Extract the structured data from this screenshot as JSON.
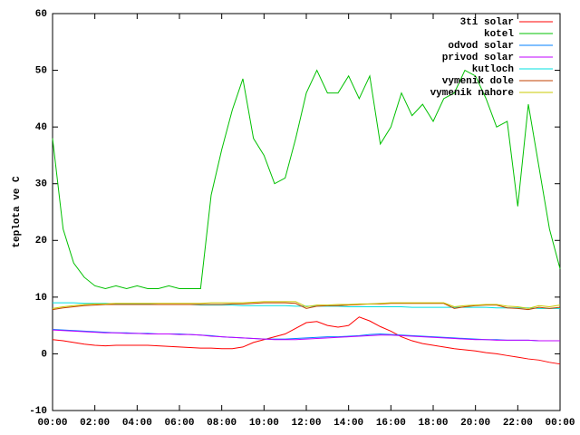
{
  "chart_data": {
    "type": "line",
    "y_label": "teplota ve C",
    "x": [
      0,
      0.5,
      1,
      1.5,
      2,
      2.5,
      3,
      3.5,
      4,
      4.5,
      5,
      5.5,
      6,
      6.5,
      7,
      7.5,
      8,
      8.5,
      9,
      9.5,
      10,
      10.5,
      11,
      11.5,
      12,
      12.5,
      13,
      13.5,
      14,
      14.5,
      15,
      15.5,
      16,
      16.5,
      17,
      17.5,
      18,
      18.5,
      19,
      19.5,
      20,
      20.5,
      21,
      21.5,
      22,
      22.5,
      23,
      23.5,
      24
    ],
    "xlim": [
      0,
      24
    ],
    "xticks": [
      {
        "value": 0,
        "label": "00:00"
      },
      {
        "value": 2,
        "label": "02:00"
      },
      {
        "value": 4,
        "label": "04:00"
      },
      {
        "value": 6,
        "label": "06:00"
      },
      {
        "value": 8,
        "label": "08:00"
      },
      {
        "value": 10,
        "label": "10:00"
      },
      {
        "value": 12,
        "label": "12:00"
      },
      {
        "value": 14,
        "label": "14:00"
      },
      {
        "value": 16,
        "label": "16:00"
      },
      {
        "value": 18,
        "label": "18:00"
      },
      {
        "value": 20,
        "label": "20:00"
      },
      {
        "value": 22,
        "label": "22:00"
      },
      {
        "value": 24,
        "label": "00:00"
      }
    ],
    "ylim": [
      -10,
      60
    ],
    "yticks": [
      -10,
      0,
      10,
      20,
      30,
      40,
      50,
      60
    ],
    "grid": false,
    "legend": "top-right",
    "series": [
      {
        "name": "3ti solar",
        "color": "#ff0000",
        "values": [
          2.5,
          2.3,
          2.0,
          1.7,
          1.5,
          1.4,
          1.5,
          1.5,
          1.5,
          1.5,
          1.4,
          1.3,
          1.2,
          1.1,
          1.0,
          1.0,
          0.9,
          0.9,
          1.2,
          2.0,
          2.5,
          3.0,
          3.5,
          4.5,
          5.5,
          5.7,
          5.0,
          4.7,
          5.0,
          6.5,
          5.8,
          4.8,
          4.0,
          3.0,
          2.3,
          1.8,
          1.5,
          1.2,
          0.9,
          0.7,
          0.5,
          0.2,
          0,
          -0.3,
          -0.6,
          -0.9,
          -1.1,
          -1.5,
          -1.8
        ]
      },
      {
        "name": "kotel",
        "color": "#00c000",
        "values": [
          38,
          22,
          16,
          13.5,
          12,
          11.5,
          12,
          11.5,
          12,
          11.5,
          11.5,
          12,
          11.5,
          11.5,
          11.5,
          28,
          36,
          43,
          48.5,
          38,
          35,
          30,
          31,
          38,
          46,
          50,
          46,
          46,
          49,
          45,
          49,
          37,
          40,
          46,
          42,
          44,
          41,
          45,
          46,
          50,
          49,
          45,
          40,
          41,
          26,
          44,
          33,
          22,
          15
        ]
      },
      {
        "name": "odvod solar",
        "color": "#0080ff",
        "values": [
          4.3,
          4.2,
          4.1,
          4.0,
          3.9,
          3.8,
          3.7,
          3.7,
          3.6,
          3.6,
          3.5,
          3.5,
          3.5,
          3.4,
          3.3,
          3.2,
          3.0,
          2.9,
          2.8,
          2.7,
          2.6,
          2.6,
          2.6,
          2.7,
          2.8,
          2.9,
          3.0,
          3.0,
          3.1,
          3.2,
          3.4,
          3.5,
          3.4,
          3.3,
          3.2,
          3.1,
          3.0,
          2.9,
          2.8,
          2.7,
          2.6,
          2.5,
          2.5,
          2.4,
          2.4,
          2.4,
          2.3,
          2.3,
          2.3
        ]
      },
      {
        "name": "privod solar",
        "color": "#c000ff",
        "values": [
          4.2,
          4.1,
          4.0,
          3.9,
          3.8,
          3.7,
          3.7,
          3.6,
          3.6,
          3.5,
          3.5,
          3.5,
          3.4,
          3.4,
          3.3,
          3.1,
          3.0,
          2.9,
          2.8,
          2.7,
          2.6,
          2.5,
          2.5,
          2.5,
          2.6,
          2.7,
          2.8,
          2.9,
          3.0,
          3.1,
          3.2,
          3.3,
          3.3,
          3.2,
          3.1,
          3.0,
          2.9,
          2.8,
          2.7,
          2.6,
          2.5,
          2.5,
          2.4,
          2.4,
          2.4,
          2.4,
          2.3,
          2.3,
          2.3
        ]
      },
      {
        "name": "kutloch",
        "color": "#00e0e0",
        "values": [
          9,
          9,
          9,
          8.9,
          8.9,
          8.9,
          8.8,
          8.8,
          8.8,
          8.8,
          8.7,
          8.7,
          8.7,
          8.7,
          8.6,
          8.6,
          8.6,
          8.6,
          8.5,
          8.5,
          8.5,
          8.5,
          8.5,
          8.4,
          8.4,
          8.4,
          8.4,
          8.4,
          8.3,
          8.3,
          8.3,
          8.3,
          8.3,
          8.3,
          8.2,
          8.2,
          8.2,
          8.2,
          8.2,
          8.2,
          8.2,
          8.2,
          8.1,
          8.1,
          8.1,
          8.1,
          8.0,
          8.0,
          8.0
        ]
      },
      {
        "name": "vymenik dole",
        "color": "#c04000",
        "values": [
          7.8,
          8.1,
          8.3,
          8.5,
          8.6,
          8.7,
          8.7,
          8.7,
          8.7,
          8.7,
          8.7,
          8.7,
          8.7,
          8.7,
          8.7,
          8.7,
          8.7,
          8.8,
          8.8,
          8.9,
          9.0,
          9.0,
          9.0,
          8.9,
          8.0,
          8.4,
          8.5,
          8.5,
          8.6,
          8.7,
          8.8,
          8.8,
          8.9,
          8.9,
          8.9,
          8.9,
          8.9,
          8.9,
          8.0,
          8.3,
          8.5,
          8.6,
          8.6,
          8.1,
          8.0,
          7.8,
          8.2,
          8.0,
          8.2
        ]
      },
      {
        "name": "vymenik nahore",
        "color": "#c8c800",
        "values": [
          8.0,
          8.3,
          8.5,
          8.7,
          8.8,
          8.8,
          8.9,
          8.9,
          8.9,
          8.9,
          8.9,
          8.9,
          8.9,
          8.9,
          8.9,
          9.0,
          9.0,
          9.0,
          9.0,
          9.1,
          9.2,
          9.2,
          9.2,
          9.2,
          8.3,
          8.6,
          8.6,
          8.7,
          8.7,
          8.8,
          8.8,
          8.9,
          9.0,
          9.0,
          9.0,
          9.0,
          9.0,
          9.0,
          8.3,
          8.5,
          8.6,
          8.7,
          8.7,
          8.4,
          8.3,
          8.0,
          8.5,
          8.3,
          8.6
        ]
      }
    ]
  }
}
